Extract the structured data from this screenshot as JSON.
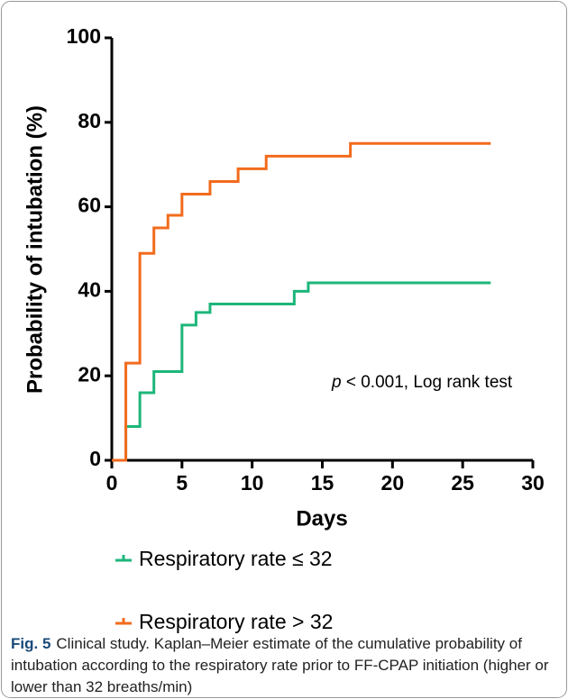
{
  "chart_data": {
    "type": "step",
    "y_label": "Probability of intubation (%)",
    "x_label": "Days",
    "xlim": [
      0,
      30
    ],
    "ylim": [
      0,
      100
    ],
    "xticks": [
      0,
      5,
      10,
      15,
      20,
      25,
      30
    ],
    "yticks": [
      0,
      20,
      40,
      60,
      80,
      100
    ],
    "annotation_italic": "p",
    "annotation": " < 0.001, Log rank test",
    "series": [
      {
        "name": "Respiratory rate ≤ 32",
        "color": "#1db67a",
        "x": [
          0,
          1,
          2,
          3,
          5,
          6,
          7,
          13,
          14,
          27
        ],
        "values": [
          0,
          8,
          16,
          21,
          32,
          35,
          37,
          40,
          42,
          42
        ]
      },
      {
        "name": "Respiratory rate > 32",
        "color": "#f26b1d",
        "x": [
          0,
          1,
          2,
          3,
          4,
          5,
          7,
          9,
          11,
          17,
          27
        ],
        "values": [
          0,
          23,
          49,
          55,
          58,
          63,
          66,
          69,
          72,
          75,
          75
        ]
      }
    ]
  },
  "caption": {
    "label": "Fig. 5",
    "text": "Clinical study. Kaplan–Meier estimate of the cumulative probability of intubation according to the respiratory rate prior to FF-CPAP initiation (higher or lower than 32 breaths/min)"
  }
}
